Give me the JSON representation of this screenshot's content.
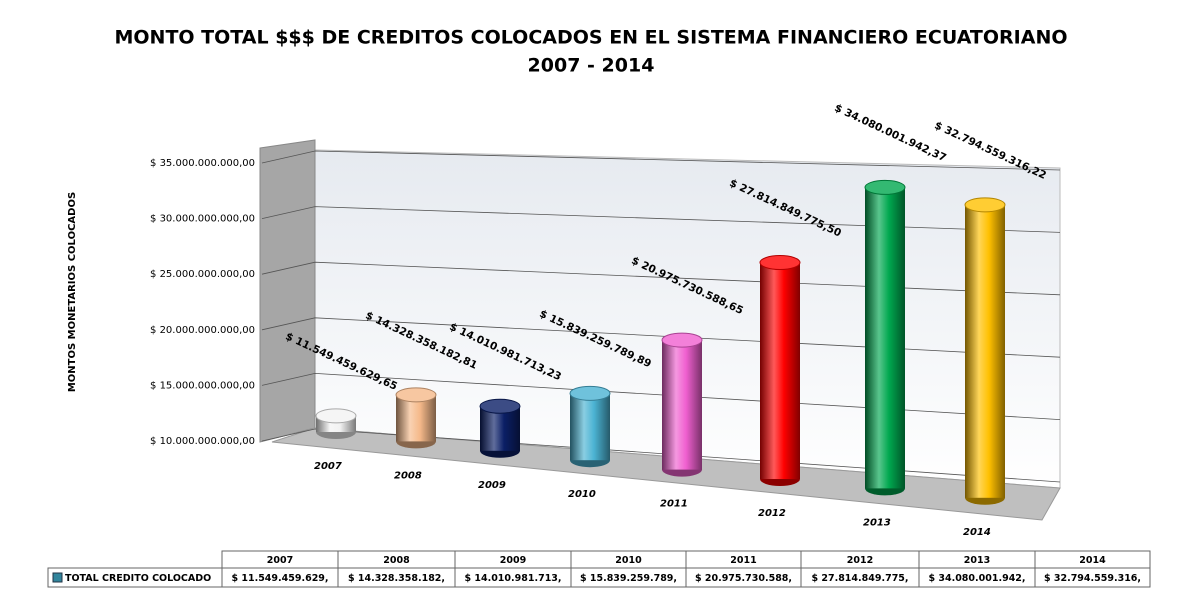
{
  "chart_data": {
    "type": "bar",
    "title": "MONTO TOTAL $$$ DE CREDITOS COLOCADOS EN EL SISTEMA FINANCIERO ECUATORIANO",
    "subtitle": "2007 - 2014",
    "ylabel": "MONTOS MONETARIOS COLOCADOS",
    "categories": [
      "2007",
      "2008",
      "2009",
      "2010",
      "2011",
      "2012",
      "2013",
      "2014"
    ],
    "series": [
      {
        "name": "TOTAL CREDITO COLOCADO",
        "color": "#31859c",
        "colors": [
          "#f2f2f2",
          "#f5b98a",
          "#0b1f66",
          "#4bb3d3",
          "#f060d0",
          "#ff0000",
          "#00a84f",
          "#ffc000"
        ],
        "values": [
          11549459629.65,
          14328358182.81,
          14010981713.23,
          15839259789.89,
          20975730588.65,
          27814849775.5,
          34080001942.37,
          32794559316.22
        ],
        "value_labels": [
          "$ 11.549.459.629,65",
          "$ 14.328.358.182,81",
          "$ 14.010.981.713,23",
          "$ 15.839.259.789,89",
          "$ 20.975.730.588,65",
          "$ 27.814.849.775,50",
          "$ 34.080.001.942,37",
          "$ 32.794.559.316,22"
        ],
        "table_labels": [
          "$ 11.549.459.629,",
          "$ 14.328.358.182,",
          "$ 14.010.981.713,",
          "$ 15.839.259.789,",
          "$ 20.975.730.588,",
          "$ 27.814.849.775,",
          "$ 34.080.001.942,",
          "$ 32.794.559.316,"
        ]
      }
    ],
    "ylim": [
      10000000000,
      35000000000
    ],
    "yticks": [
      {
        "value": 10000000000,
        "label": "$ 10.000.000.000,00"
      },
      {
        "value": 15000000000,
        "label": "$ 15.000.000.000,00"
      },
      {
        "value": 20000000000,
        "label": "$ 20.000.000.000,00"
      },
      {
        "value": 25000000000,
        "label": "$ 25.000.000.000,00"
      },
      {
        "value": 30000000000,
        "label": "$ 30.000.000.000,00"
      },
      {
        "value": 35000000000,
        "label": "$ 35.000.000.000,00"
      }
    ],
    "grid": true
  }
}
